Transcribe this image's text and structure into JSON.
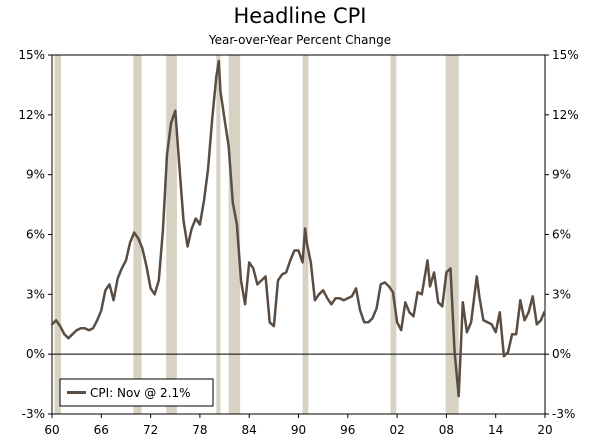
{
  "chart_data": {
    "type": "line",
    "title": "Headline CPI",
    "subtitle": "Year-over-Year Percent Change",
    "xlabel": "",
    "ylabel": "",
    "x_tick_labels": [
      "60",
      "66",
      "72",
      "78",
      "84",
      "90",
      "96",
      "02",
      "08",
      "14",
      "20"
    ],
    "x_tick_years": [
      1960,
      1966,
      1972,
      1978,
      1984,
      1990,
      1996,
      2002,
      2008,
      2014,
      2020
    ],
    "y_tick_labels": [
      "-3%",
      "0%",
      "3%",
      "6%",
      "9%",
      "12%",
      "15%"
    ],
    "y_tick_values": [
      -3,
      0,
      3,
      6,
      9,
      12,
      15
    ],
    "xlim": [
      1960,
      2020
    ],
    "ylim": [
      -3,
      15
    ],
    "grid": false,
    "zero_line": true,
    "legend": {
      "placement": "bottom-left",
      "label": "CPI: Nov @ 2.1%"
    },
    "recessions": [
      [
        1960.3,
        1961.1
      ],
      [
        1969.9,
        1970.9
      ],
      [
        1973.9,
        1975.2
      ],
      [
        1980.0,
        1980.5
      ],
      [
        1981.5,
        1982.9
      ],
      [
        1990.5,
        1991.2
      ],
      [
        2001.2,
        2001.9
      ],
      [
        2007.9,
        2009.5
      ]
    ],
    "series": [
      {
        "name": "CPI",
        "color": "#5a4d43",
        "x": [
          1960.0,
          1960.5,
          1961.0,
          1961.5,
          1962.0,
          1962.5,
          1963.0,
          1963.5,
          1964.0,
          1964.5,
          1965.0,
          1965.5,
          1966.0,
          1966.5,
          1967.0,
          1967.5,
          1968.0,
          1968.5,
          1969.0,
          1969.5,
          1970.0,
          1970.5,
          1971.0,
          1971.5,
          1972.0,
          1972.5,
          1973.0,
          1973.5,
          1974.0,
          1974.5,
          1975.0,
          1975.5,
          1976.0,
          1976.5,
          1977.0,
          1977.5,
          1978.0,
          1978.5,
          1979.0,
          1979.5,
          1980.0,
          1980.3,
          1980.5,
          1981.0,
          1981.5,
          1982.0,
          1982.5,
          1983.0,
          1983.5,
          1984.0,
          1984.5,
          1985.0,
          1985.5,
          1986.0,
          1986.5,
          1987.0,
          1987.5,
          1988.0,
          1988.5,
          1989.0,
          1989.5,
          1990.0,
          1990.5,
          1990.8,
          1991.0,
          1991.5,
          1992.0,
          1992.5,
          1993.0,
          1993.5,
          1994.0,
          1994.5,
          1995.0,
          1995.5,
          1996.0,
          1996.5,
          1997.0,
          1997.5,
          1998.0,
          1998.5,
          1999.0,
          1999.5,
          2000.0,
          2000.5,
          2001.0,
          2001.5,
          2002.0,
          2002.5,
          2003.0,
          2003.5,
          2004.0,
          2004.5,
          2005.0,
          2005.7,
          2006.0,
          2006.5,
          2007.0,
          2007.5,
          2008.0,
          2008.5,
          2009.0,
          2009.5,
          2010.0,
          2010.5,
          2011.0,
          2011.7,
          2012.0,
          2012.5,
          2013.0,
          2013.5,
          2014.0,
          2014.5,
          2015.0,
          2015.5,
          2016.0,
          2016.5,
          2017.0,
          2017.5,
          2018.0,
          2018.5,
          2019.0,
          2019.5,
          2019.9
        ],
        "values": [
          1.5,
          1.7,
          1.4,
          1.0,
          0.8,
          1.0,
          1.2,
          1.3,
          1.3,
          1.2,
          1.3,
          1.7,
          2.2,
          3.2,
          3.5,
          2.7,
          3.8,
          4.3,
          4.7,
          5.6,
          6.1,
          5.8,
          5.3,
          4.4,
          3.3,
          3.0,
          3.7,
          6.2,
          10.0,
          11.6,
          12.2,
          9.4,
          6.7,
          5.4,
          6.3,
          6.8,
          6.5,
          7.7,
          9.3,
          11.8,
          13.9,
          14.7,
          13.2,
          11.8,
          10.4,
          7.6,
          6.5,
          3.7,
          2.5,
          4.6,
          4.3,
          3.5,
          3.7,
          3.9,
          1.6,
          1.4,
          3.7,
          4.0,
          4.1,
          4.7,
          5.2,
          5.2,
          4.6,
          6.3,
          5.6,
          4.6,
          2.7,
          3.0,
          3.2,
          2.8,
          2.5,
          2.8,
          2.8,
          2.7,
          2.8,
          2.9,
          3.3,
          2.2,
          1.6,
          1.6,
          1.8,
          2.3,
          3.5,
          3.6,
          3.4,
          3.1,
          1.6,
          1.2,
          2.6,
          2.1,
          1.9,
          3.1,
          3.0,
          4.7,
          3.4,
          4.1,
          2.6,
          2.4,
          4.1,
          4.3,
          0.1,
          -2.1,
          2.6,
          1.1,
          1.6,
          3.9,
          2.9,
          1.7,
          1.6,
          1.5,
          1.1,
          2.1,
          -0.1,
          0.1,
          1.0,
          1.0,
          2.7,
          1.7,
          2.1,
          2.9,
          1.5,
          1.7,
          2.1
        ]
      }
    ]
  }
}
